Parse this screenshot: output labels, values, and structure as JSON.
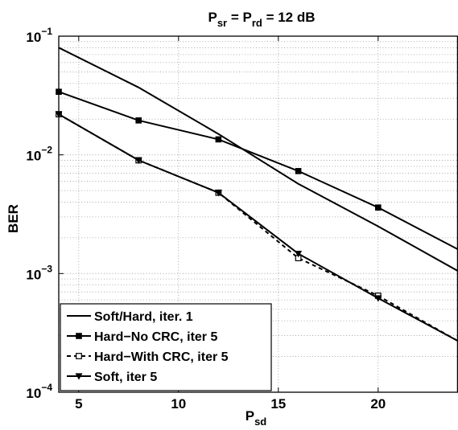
{
  "chart_data": {
    "type": "line",
    "title_parts": {
      "p1": "P",
      "sub1": "sr",
      "eq1": " = P",
      "sub2": "rd",
      "rest": " = 12 dB"
    },
    "xlabel_parts": {
      "main": "P",
      "sub": "sd"
    },
    "ylabel": "BER",
    "xlim": [
      4,
      24
    ],
    "ylim": [
      0.0001,
      0.1
    ],
    "yscale": "log",
    "grid": true,
    "x_ticks": [
      5,
      10,
      15,
      20
    ],
    "y_ticks": [
      {
        "value": 0.1,
        "base": "10",
        "exp": "−1"
      },
      {
        "value": 0.01,
        "base": "10",
        "exp": "−2"
      },
      {
        "value": 0.001,
        "base": "10",
        "exp": "−3"
      },
      {
        "value": 0.0001,
        "base": "10",
        "exp": "−4"
      }
    ],
    "legend_position": "bottom-left",
    "series": [
      {
        "name": "Soft/Hard, iter. 1",
        "line": "solid",
        "marker": "none",
        "x": [
          4,
          8,
          12,
          16,
          20,
          24
        ],
        "y": [
          0.08,
          0.037,
          0.015,
          0.0057,
          0.0025,
          0.00105
        ]
      },
      {
        "name": "Hard−No CRC, iter 5",
        "line": "solid",
        "marker": "square",
        "x": [
          4,
          8,
          12,
          16,
          20,
          24
        ],
        "y": [
          0.034,
          0.0195,
          0.0135,
          0.0073,
          0.0036,
          0.0016
        ]
      },
      {
        "name": "Hard−With CRC, iter 5",
        "line": "dashed",
        "marker": "square-open",
        "x": [
          4,
          8,
          12,
          16,
          20,
          24
        ],
        "y": [
          0.022,
          0.009,
          0.0048,
          0.00135,
          0.00065,
          0.00027
        ]
      },
      {
        "name": "Soft, iter 5",
        "line": "solid",
        "marker": "triangle-down",
        "x": [
          4,
          8,
          12,
          16,
          20,
          24
        ],
        "y": [
          0.022,
          0.009,
          0.0048,
          0.00147,
          0.00062,
          0.00027
        ]
      }
    ]
  }
}
